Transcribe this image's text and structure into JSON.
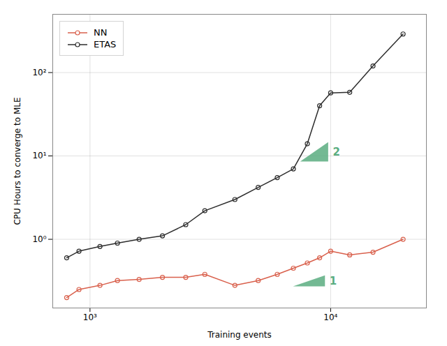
{
  "chart_data": {
    "type": "line",
    "x": [
      800,
      900,
      1100,
      1300,
      1600,
      2000,
      2500,
      3000,
      4000,
      5000,
      6000,
      7000,
      8000,
      9000,
      10000,
      12000,
      15000,
      20000
    ],
    "series": [
      {
        "name": "NN",
        "color": "#d9604c",
        "marker": "circle",
        "values": [
          0.2,
          0.25,
          0.28,
          0.32,
          0.33,
          0.35,
          0.35,
          0.38,
          0.28,
          0.32,
          0.38,
          0.45,
          0.52,
          0.6,
          0.72,
          0.65,
          0.7,
          1.0
        ]
      },
      {
        "name": "ETAS",
        "color": "#2d2d2d",
        "marker": "circle",
        "values": [
          0.6,
          0.72,
          0.82,
          0.9,
          1.0,
          1.1,
          1.5,
          2.2,
          3.0,
          4.2,
          5.5,
          7.0,
          14.0,
          40.0,
          57.0,
          58.0,
          120.0,
          290.0
        ]
      }
    ],
    "xlabel": "Training events",
    "ylabel": "CPU Hours to converge to MLE",
    "xlim": [
      700,
      25000
    ],
    "ylim": [
      0.15,
      500
    ],
    "xticks": [
      {
        "value": 1000,
        "label": "10³"
      },
      {
        "value": 10000,
        "label": "10⁴"
      }
    ],
    "yticks": [
      {
        "value": 1,
        "label": "10⁰"
      },
      {
        "value": 10,
        "label": "10¹"
      },
      {
        "value": 100,
        "label": "10²"
      }
    ],
    "log": true,
    "grid": true,
    "legend": "upper left",
    "annotations": [
      {
        "text": "2",
        "color": "#5aad80",
        "points": [
          [
            7500,
            8.5
          ],
          [
            9800,
            8.5
          ],
          [
            9800,
            14.512711111111111
          ]
        ]
      },
      {
        "text": "1",
        "color": "#5aad80",
        "points": [
          [
            7000,
            0.27
          ],
          [
            9500,
            0.27
          ],
          [
            9500,
            0.36642857142857144
          ]
        ]
      }
    ]
  }
}
